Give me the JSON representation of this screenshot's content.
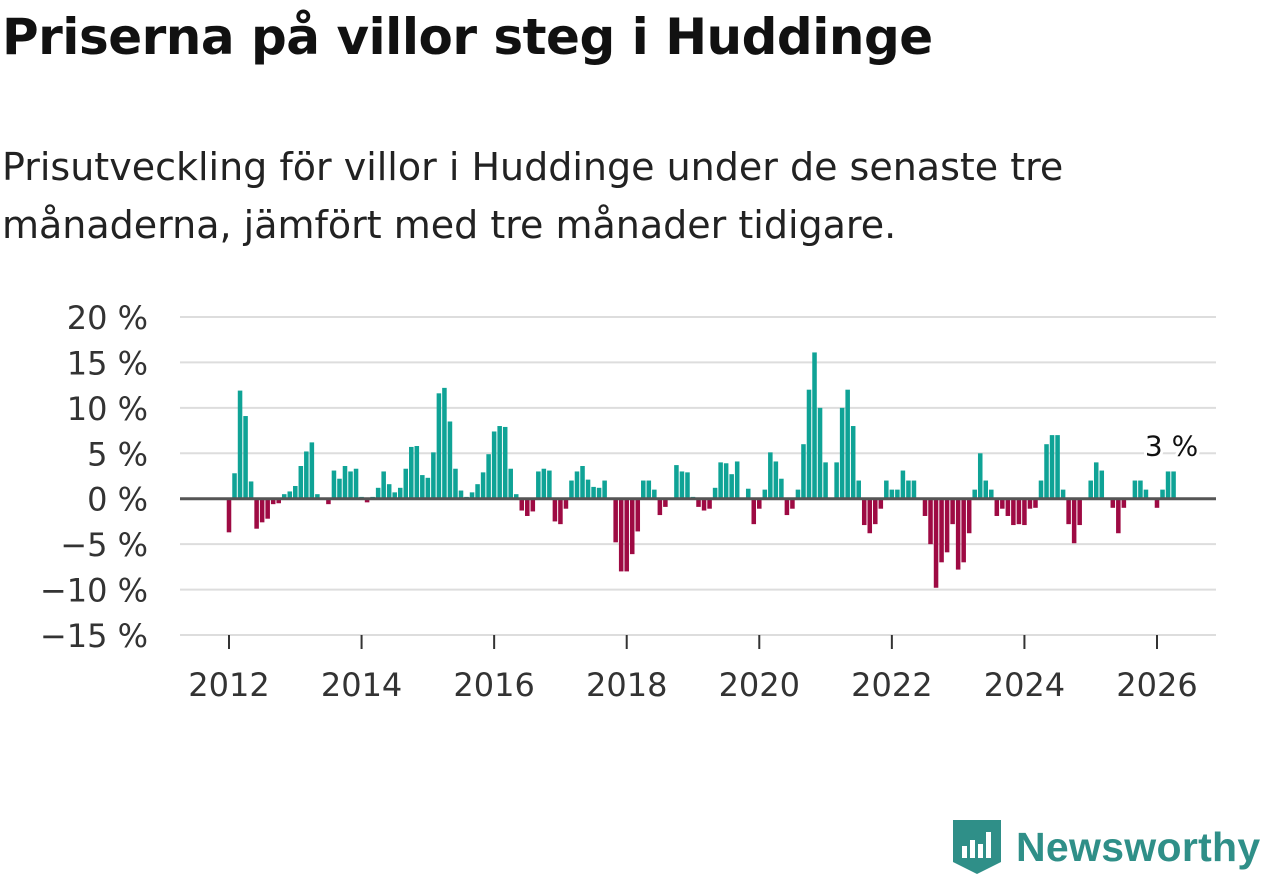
{
  "header": {
    "title": "Priserna på villor steg i Huddinge",
    "subtitle": "Prisutveckling för villor i Huddinge under de senaste tre månaderna, jämfört med tre månader tidigare."
  },
  "brand": {
    "name": "Newsworthy",
    "icon": "newsworthy-logo-icon",
    "color": "#2f8f88"
  },
  "colors": {
    "positive": "#0fa396",
    "negative": "#9e0a43",
    "grid": "#dddddd",
    "zero_line": "#555555"
  },
  "chart_data": {
    "type": "bar",
    "title": "Priserna på villor steg i Huddinge",
    "xlabel": "",
    "ylabel": "",
    "unit": "%",
    "ylim": [
      -15,
      20
    ],
    "y_ticks": [
      20,
      15,
      10,
      5,
      0,
      -5,
      -10,
      -15
    ],
    "y_tick_labels": [
      "20 %",
      "15 %",
      "10 %",
      "5 %",
      "0 %",
      "−5 %",
      "−10 %",
      "−15 %"
    ],
    "x_ticks": [
      2012,
      2014,
      2016,
      2018,
      2020,
      2022,
      2024,
      2026
    ],
    "x_tick_labels": [
      "2012",
      "2014",
      "2016",
      "2018",
      "2020",
      "2022",
      "2024",
      "2026"
    ],
    "start": {
      "year": 2012,
      "month": 1
    },
    "end": {
      "year": 2026,
      "month": 3
    },
    "annotation": {
      "label": "3 %",
      "value": 3,
      "position": "last-bar"
    },
    "grid": true,
    "values": [
      -3.7,
      2.8,
      11.9,
      9.1,
      1.9,
      -3.3,
      -2.6,
      -2.2,
      -0.6,
      -0.5,
      0.5,
      0.8,
      1.4,
      3.6,
      5.2,
      6.2,
      0.5,
      0.1,
      -0.6,
      3.1,
      2.2,
      3.6,
      3.0,
      3.3,
      0.2,
      -0.4,
      0.2,
      1.2,
      3.0,
      1.6,
      0.7,
      1.2,
      3.3,
      5.7,
      5.8,
      2.6,
      2.3,
      5.1,
      11.6,
      12.2,
      8.5,
      3.3,
      0.9,
      0.2,
      0.7,
      1.6,
      2.9,
      4.9,
      7.4,
      8.0,
      7.9,
      3.3,
      0.5,
      -1.3,
      -1.9,
      -1.4,
      3.0,
      3.3,
      3.1,
      -2.5,
      -2.8,
      -1.1,
      2.0,
      3.0,
      3.6,
      2.1,
      1.3,
      1.2,
      2.0,
      0.0,
      -4.8,
      -8.0,
      -8.0,
      -6.1,
      -3.6,
      2.0,
      2.0,
      1.0,
      -1.8,
      -0.9,
      0.1,
      3.7,
      3.0,
      2.9,
      0.2,
      -0.9,
      -1.3,
      -1.1,
      1.2,
      4.0,
      3.9,
      2.7,
      4.1,
      0.1,
      1.1,
      -2.8,
      -1.1,
      1.0,
      5.1,
      4.1,
      2.2,
      -1.8,
      -1.1,
      1.0,
      6.0,
      12.0,
      16.1,
      10.0,
      4.0,
      0.0,
      4.0,
      10.0,
      12.0,
      8.0,
      2.0,
      -2.9,
      -3.8,
      -2.8,
      -1.1,
      2.0,
      1.0,
      1.0,
      3.1,
      2.0,
      2.0,
      0.0,
      -1.9,
      -5.0,
      -9.8,
      -7.0,
      -5.9,
      -2.8,
      -7.8,
      -7.0,
      -3.8,
      1.0,
      5.0,
      2.0,
      1.0,
      -1.9,
      -1.1,
      -1.9,
      -2.9,
      -2.8,
      -2.9,
      -1.1,
      -1.0,
      2.0,
      6.0,
      7.0,
      7.0,
      1.0,
      -2.8,
      -4.9,
      -2.9,
      0.0,
      2.0,
      4.0,
      3.1,
      0.0,
      -1.0,
      -3.8,
      -1.0,
      0.0,
      2.0,
      2.0,
      1.0,
      0.0,
      -1.0,
      1.0,
      3.0,
      3.0
    ]
  }
}
